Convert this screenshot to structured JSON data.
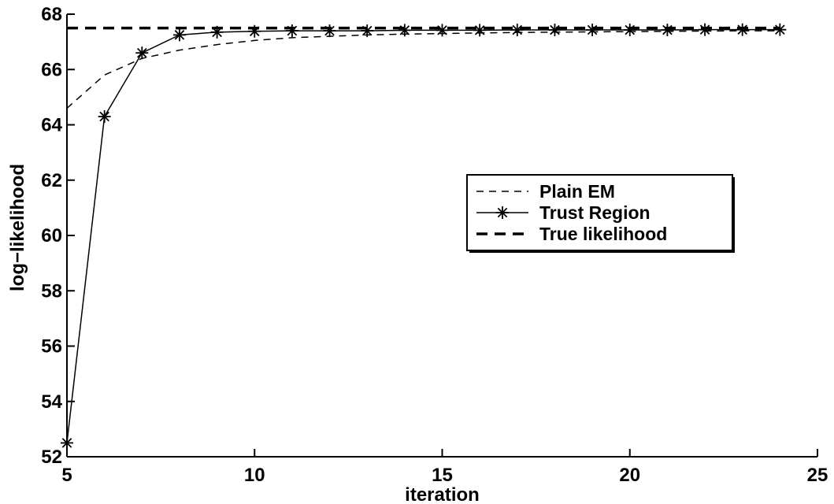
{
  "chart_data": {
    "type": "line",
    "title": "",
    "xlabel": "iteration",
    "ylabel": "log−likelihood",
    "xlim": [
      5,
      25
    ],
    "ylim": [
      52,
      68
    ],
    "xticks": [
      5,
      10,
      15,
      20,
      25
    ],
    "yticks": [
      52,
      54,
      56,
      58,
      60,
      62,
      64,
      66,
      68
    ],
    "grid": false,
    "legend": {
      "placement": "center-right"
    },
    "series": [
      {
        "name": "Plain EM",
        "style": "thin-dashed",
        "color": "#000000",
        "x": [
          5,
          6,
          7,
          8,
          9,
          10,
          11,
          12,
          13,
          14,
          15,
          16,
          17,
          18,
          19,
          20,
          21,
          22,
          23,
          24
        ],
        "y": [
          64.6,
          65.8,
          66.4,
          66.7,
          66.9,
          67.05,
          67.15,
          67.2,
          67.25,
          67.28,
          67.3,
          67.32,
          67.34,
          67.35,
          67.36,
          67.37,
          67.38,
          67.39,
          67.4,
          67.4
        ]
      },
      {
        "name": "Trust Region",
        "style": "solid-star",
        "color": "#000000",
        "x": [
          5,
          6,
          7,
          8,
          9,
          10,
          11,
          12,
          13,
          14,
          15,
          16,
          17,
          18,
          19,
          20,
          21,
          22,
          23,
          24
        ],
        "y": [
          52.5,
          64.3,
          66.6,
          67.25,
          67.35,
          67.38,
          67.4,
          67.4,
          67.4,
          67.42,
          67.42,
          67.42,
          67.43,
          67.43,
          67.43,
          67.43,
          67.43,
          67.44,
          67.44,
          67.44
        ]
      },
      {
        "name": "True likelihood",
        "style": "thick-dashed",
        "color": "#000000",
        "x": [
          5,
          24
        ],
        "y": [
          67.5,
          67.5
        ]
      }
    ]
  }
}
